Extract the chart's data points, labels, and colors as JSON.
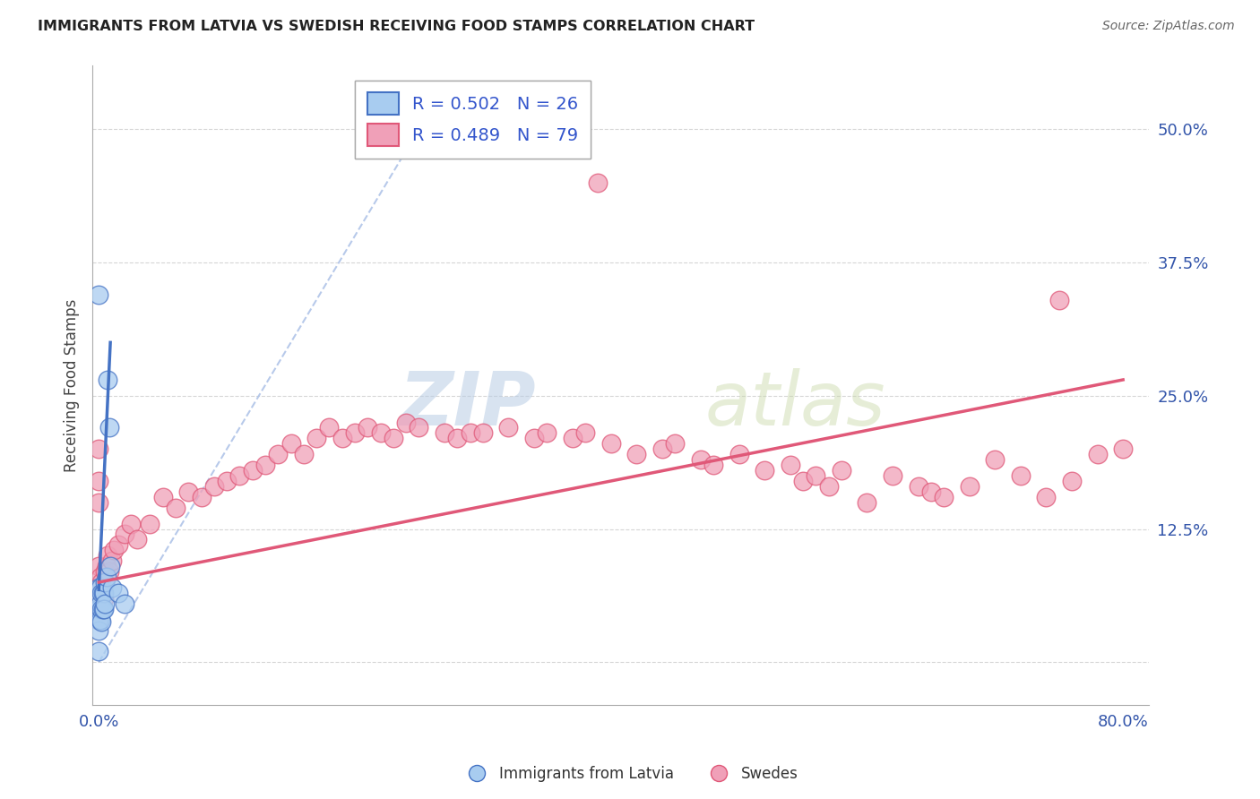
{
  "title": "IMMIGRANTS FROM LATVIA VS SWEDISH RECEIVING FOOD STAMPS CORRELATION CHART",
  "source": "Source: ZipAtlas.com",
  "ylabel": "Receiving Food Stamps",
  "xlim": [
    -0.005,
    0.82
  ],
  "ylim": [
    -0.04,
    0.56
  ],
  "xtick_positions": [
    0.0,
    0.8
  ],
  "xticklabels": [
    "0.0%",
    "80.0%"
  ],
  "ytick_positions": [
    0.0,
    0.125,
    0.25,
    0.375,
    0.5
  ],
  "yticklabels": [
    "",
    "12.5%",
    "25.0%",
    "37.5%",
    "50.0%"
  ],
  "latvia_R": 0.502,
  "latvia_N": 26,
  "sweden_R": 0.489,
  "sweden_N": 79,
  "legend_label1": "Immigrants from Latvia",
  "legend_label2": "Swedes",
  "watermark_zip": "ZIP",
  "watermark_atlas": "atlas",
  "latvia_color": "#a8ccf0",
  "sweden_color": "#f0a0b8",
  "latvia_line_color": "#4472c4",
  "sweden_line_color": "#e05878",
  "dashed_line_color": "#b0c4e8",
  "latvia_scatter_x": [
    0.0,
    0.0,
    0.0,
    0.0,
    0.0,
    0.0,
    0.0,
    0.001,
    0.001,
    0.001,
    0.002,
    0.002,
    0.002,
    0.003,
    0.003,
    0.004,
    0.004,
    0.005,
    0.005,
    0.006,
    0.007,
    0.008,
    0.009,
    0.01,
    0.015,
    0.02
  ],
  "latvia_scatter_y": [
    0.345,
    0.07,
    0.06,
    0.05,
    0.04,
    0.03,
    0.01,
    0.07,
    0.055,
    0.04,
    0.065,
    0.05,
    0.038,
    0.065,
    0.05,
    0.065,
    0.05,
    0.075,
    0.055,
    0.08,
    0.265,
    0.22,
    0.09,
    0.07,
    0.065,
    0.055
  ],
  "sweden_scatter_x": [
    0.0,
    0.0,
    0.0,
    0.0,
    0.0,
    0.0,
    0.001,
    0.001,
    0.002,
    0.003,
    0.004,
    0.005,
    0.006,
    0.007,
    0.008,
    0.01,
    0.012,
    0.015,
    0.02,
    0.025,
    0.03,
    0.04,
    0.05,
    0.06,
    0.07,
    0.08,
    0.09,
    0.1,
    0.11,
    0.12,
    0.13,
    0.14,
    0.15,
    0.16,
    0.17,
    0.18,
    0.19,
    0.2,
    0.21,
    0.22,
    0.23,
    0.24,
    0.25,
    0.27,
    0.28,
    0.29,
    0.3,
    0.32,
    0.34,
    0.35,
    0.37,
    0.38,
    0.39,
    0.4,
    0.42,
    0.44,
    0.45,
    0.47,
    0.48,
    0.5,
    0.52,
    0.54,
    0.55,
    0.56,
    0.57,
    0.58,
    0.6,
    0.62,
    0.64,
    0.65,
    0.66,
    0.68,
    0.7,
    0.72,
    0.74,
    0.75,
    0.76,
    0.78,
    0.8
  ],
  "sweden_scatter_y": [
    0.2,
    0.17,
    0.15,
    0.09,
    0.07,
    0.04,
    0.08,
    0.055,
    0.075,
    0.065,
    0.06,
    0.085,
    0.09,
    0.1,
    0.085,
    0.095,
    0.105,
    0.11,
    0.12,
    0.13,
    0.115,
    0.13,
    0.155,
    0.145,
    0.16,
    0.155,
    0.165,
    0.17,
    0.175,
    0.18,
    0.185,
    0.195,
    0.205,
    0.195,
    0.21,
    0.22,
    0.21,
    0.215,
    0.22,
    0.215,
    0.21,
    0.225,
    0.22,
    0.215,
    0.21,
    0.215,
    0.215,
    0.22,
    0.21,
    0.215,
    0.21,
    0.215,
    0.45,
    0.205,
    0.195,
    0.2,
    0.205,
    0.19,
    0.185,
    0.195,
    0.18,
    0.185,
    0.17,
    0.175,
    0.165,
    0.18,
    0.15,
    0.175,
    0.165,
    0.16,
    0.155,
    0.165,
    0.19,
    0.175,
    0.155,
    0.34,
    0.17,
    0.195,
    0.2
  ],
  "latvia_line_x0": 0.0,
  "latvia_line_y0": 0.068,
  "latvia_line_x1": 0.009,
  "latvia_line_y1": 0.3,
  "sweden_line_x0": 0.0,
  "sweden_line_y0": 0.075,
  "sweden_line_x1": 0.8,
  "sweden_line_y1": 0.265,
  "dashed_line_x0": 0.0,
  "dashed_line_y0": 0.0,
  "dashed_line_x1": 0.25,
  "dashed_line_y1": 0.5
}
